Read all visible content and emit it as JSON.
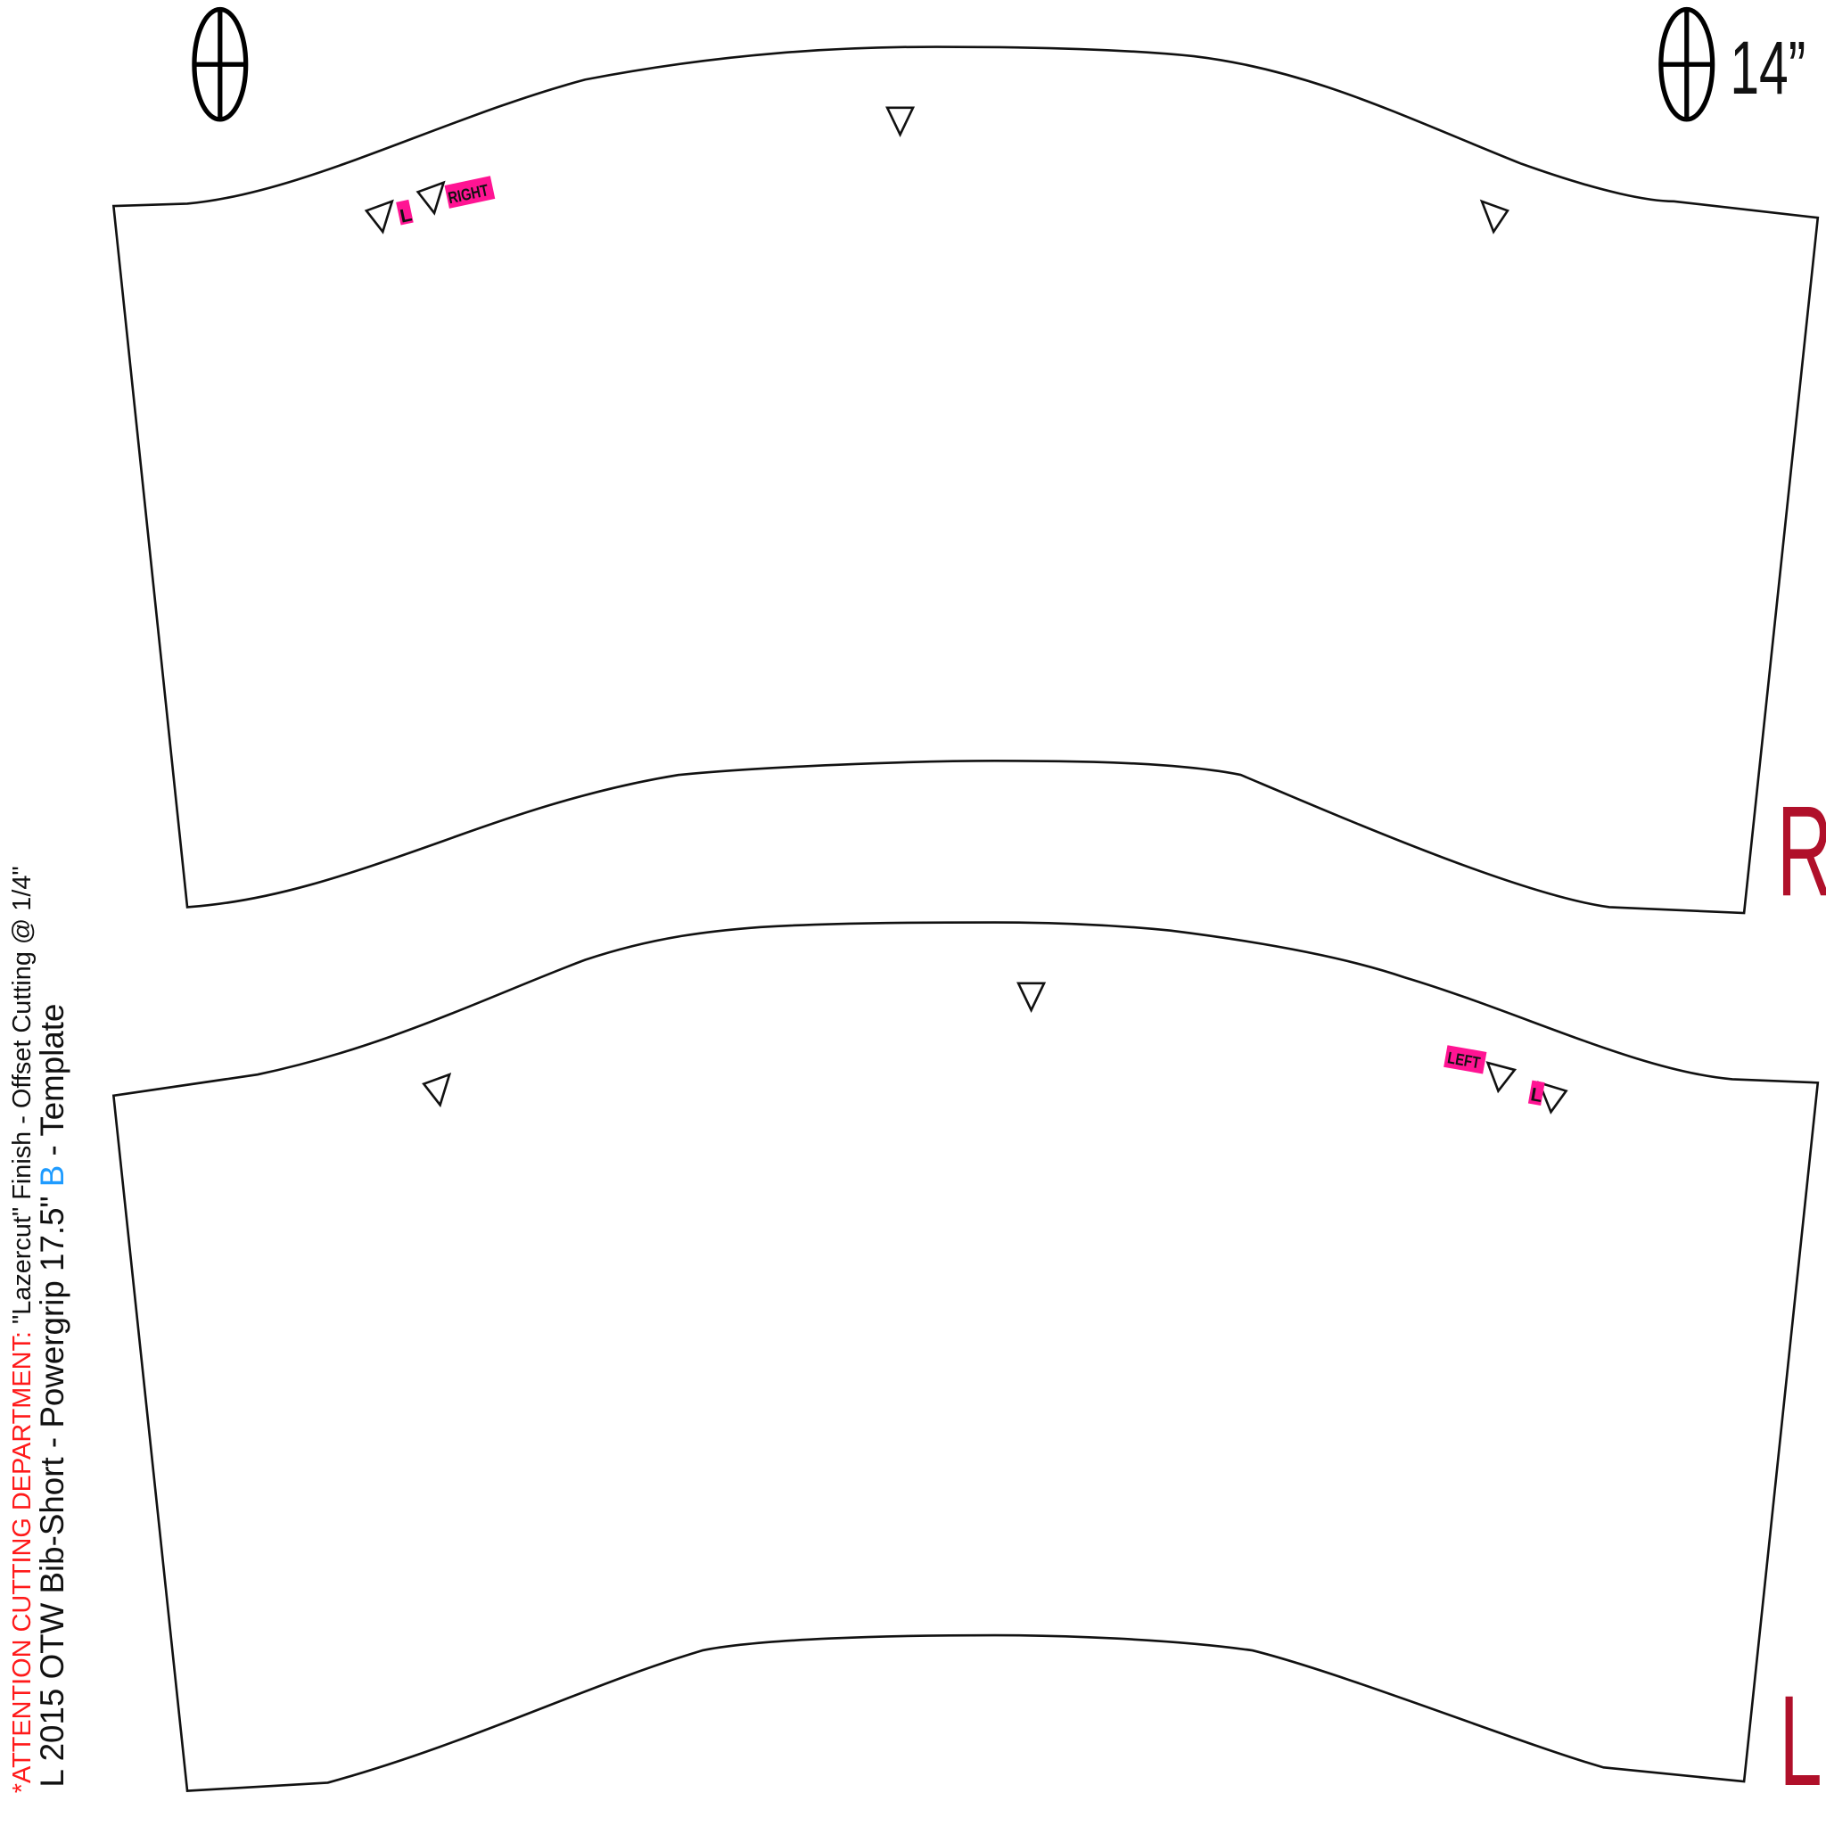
{
  "header": {
    "notice_red": "*ATTENTION CUTTING DEPARTMENT: ",
    "notice_black": "\"Lazercut\"  Finish - Offset Cutting @ 1/4\"",
    "title_part1": "L  2015  OTW Bib-Short - Powergrip  17.5\" ",
    "title_highlight": "B",
    "title_part2": " - Template"
  },
  "measurement": "14”",
  "pieces": [
    {
      "side_letter": "R",
      "labels": [
        "L",
        "RIGHT"
      ]
    },
    {
      "side_letter": "L",
      "labels": [
        "LEFT",
        "L"
      ]
    }
  ],
  "icons": [
    "crosshair-icon",
    "notch-triangle-icon"
  ],
  "colors": {
    "notice": "#ff1a1a",
    "highlight": "#1e9bff",
    "side_letter": "#b0102a",
    "tag_bg": "#ff1493"
  }
}
